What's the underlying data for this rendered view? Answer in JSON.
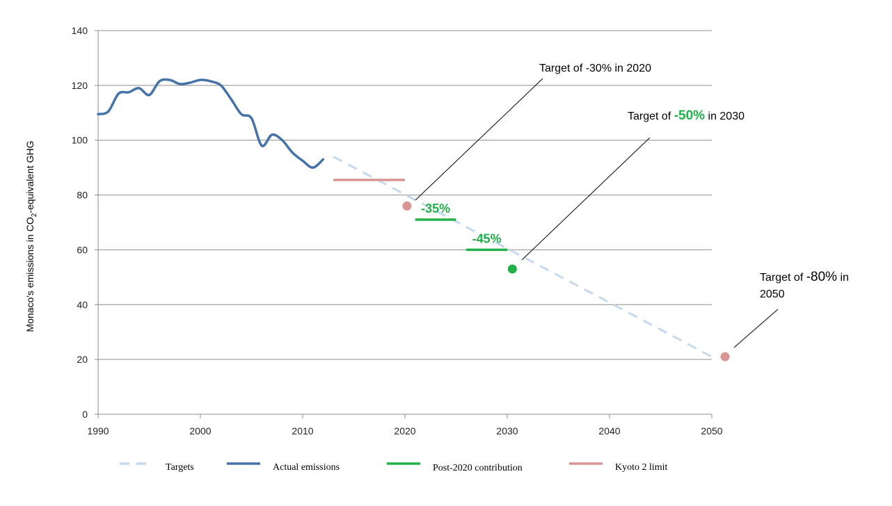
{
  "chart_data": {
    "type": "line",
    "title": "",
    "xlabel": "",
    "ylabel_parts": {
      "pre": "Monaco's emissions in CO",
      "sub": "2",
      "post": "-equivalent GHG"
    },
    "xlim": [
      1990,
      2050
    ],
    "ylim": [
      0,
      140
    ],
    "x_ticks": [
      1990,
      2000,
      2010,
      2020,
      2030,
      2040,
      2050
    ],
    "y_ticks": [
      0,
      20,
      40,
      60,
      80,
      100,
      120,
      140
    ],
    "grid": "horizontal",
    "legend_position": "bottom",
    "series": [
      {
        "name": "Targets",
        "style": "dashed",
        "color": "#c5d9ee",
        "points": [
          [
            2013,
            94
          ],
          [
            2050,
            21
          ]
        ]
      },
      {
        "name": "Actual emissions",
        "style": "solid",
        "color": "#4572a7",
        "points": [
          [
            1990,
            109.5
          ],
          [
            1991,
            110.5
          ],
          [
            1992,
            117
          ],
          [
            1993,
            117.5
          ],
          [
            1994,
            119
          ],
          [
            1995,
            116.5
          ],
          [
            1996,
            121.5
          ],
          [
            1997,
            122
          ],
          [
            1998,
            120.5
          ],
          [
            1999,
            121
          ],
          [
            2000,
            122
          ],
          [
            2001,
            121.5
          ],
          [
            2002,
            120
          ],
          [
            2003,
            115
          ],
          [
            2004,
            109.5
          ],
          [
            2005,
            108
          ],
          [
            2006,
            98
          ],
          [
            2007,
            102
          ],
          [
            2008,
            100
          ],
          [
            2009,
            95.5
          ],
          [
            2010,
            92.5
          ],
          [
            2011,
            90
          ],
          [
            2012,
            93
          ]
        ]
      },
      {
        "name": "Post-2020 contribution",
        "style": "segments",
        "color": "#22b04b",
        "segments": [
          {
            "x": [
              2021,
              2025
            ],
            "y": 71,
            "label": "-35%"
          },
          {
            "x": [
              2026,
              2030
            ],
            "y": 60,
            "label": "-45%"
          }
        ]
      },
      {
        "name": "Kyoto 2 limit",
        "style": "segments",
        "color": "#d99594",
        "segments": [
          {
            "x": [
              2013,
              2020
            ],
            "y": 85.5
          }
        ]
      }
    ],
    "markers": [
      {
        "x": 2020.2,
        "y": 76,
        "color": "#d99594"
      },
      {
        "x": 2030.5,
        "y": 53,
        "color": "#22b04b"
      },
      {
        "x": 2051.3,
        "y": 21,
        "color": "#d99594"
      }
    ],
    "annotations": [
      {
        "lines": [
          [
            {
              "t": "Target of -30% in 2020"
            }
          ]
        ]
      },
      {
        "lines": [
          [
            {
              "t": "Target of "
            },
            {
              "t": "-50%",
              "style": "green"
            },
            {
              "t": " in 2030"
            }
          ]
        ]
      },
      {
        "lines": [
          [
            {
              "t": "Target of "
            },
            {
              "t": "-80%",
              "style": "big"
            },
            {
              "t": " in"
            }
          ],
          [
            {
              "t": "2050"
            }
          ]
        ]
      }
    ]
  }
}
